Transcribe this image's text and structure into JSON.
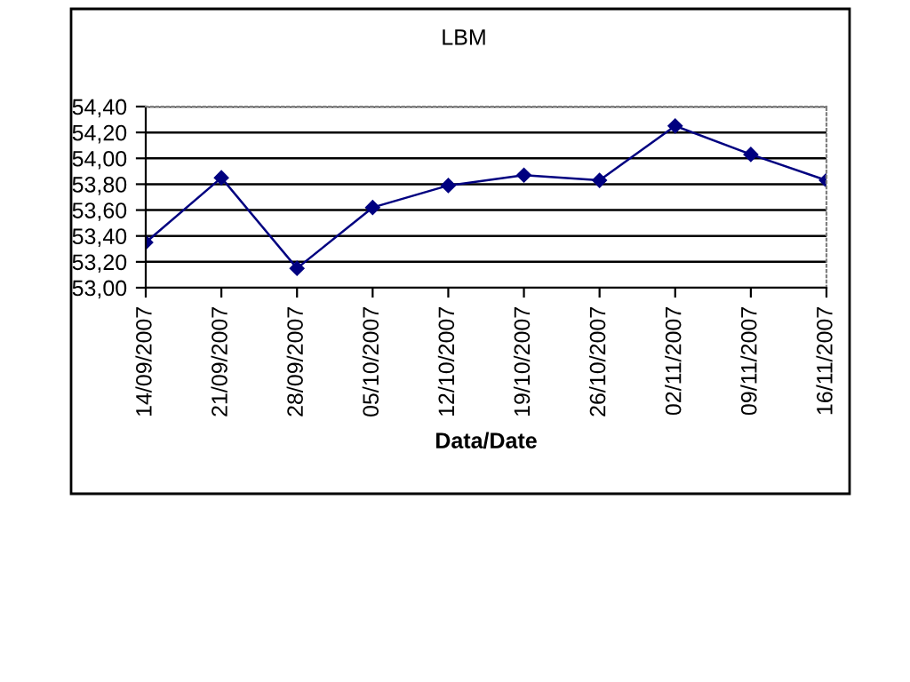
{
  "chart_data": {
    "type": "line",
    "title": "LBM",
    "xlabel": "Data/Date",
    "categories": [
      "14/09/2007",
      "21/09/2007",
      "28/09/2007",
      "05/10/2007",
      "12/10/2007",
      "19/10/2007",
      "26/10/2007",
      "02/11/2007",
      "09/11/2007",
      "16/11/2007"
    ],
    "series": [
      {
        "color": "#000080",
        "values": [
          53.35,
          53.85,
          53.15,
          53.62,
          53.79,
          53.87,
          53.83,
          54.25,
          54.03,
          53.83
        ]
      }
    ],
    "ylim": [
      53.0,
      54.4
    ],
    "yticks": [
      {
        "value": 53.0,
        "label": "53,00"
      },
      {
        "value": 53.2,
        "label": "53,20"
      },
      {
        "value": 53.4,
        "label": "53,40"
      },
      {
        "value": 53.6,
        "label": "53,60"
      },
      {
        "value": 53.8,
        "label": "53,80"
      },
      {
        "value": 54.0,
        "label": "54,00"
      },
      {
        "value": 54.2,
        "label": "54,20"
      },
      {
        "value": 54.4,
        "label": "54,40"
      }
    ],
    "grid": "y",
    "marker": "diamond",
    "line_style": "solid"
  }
}
